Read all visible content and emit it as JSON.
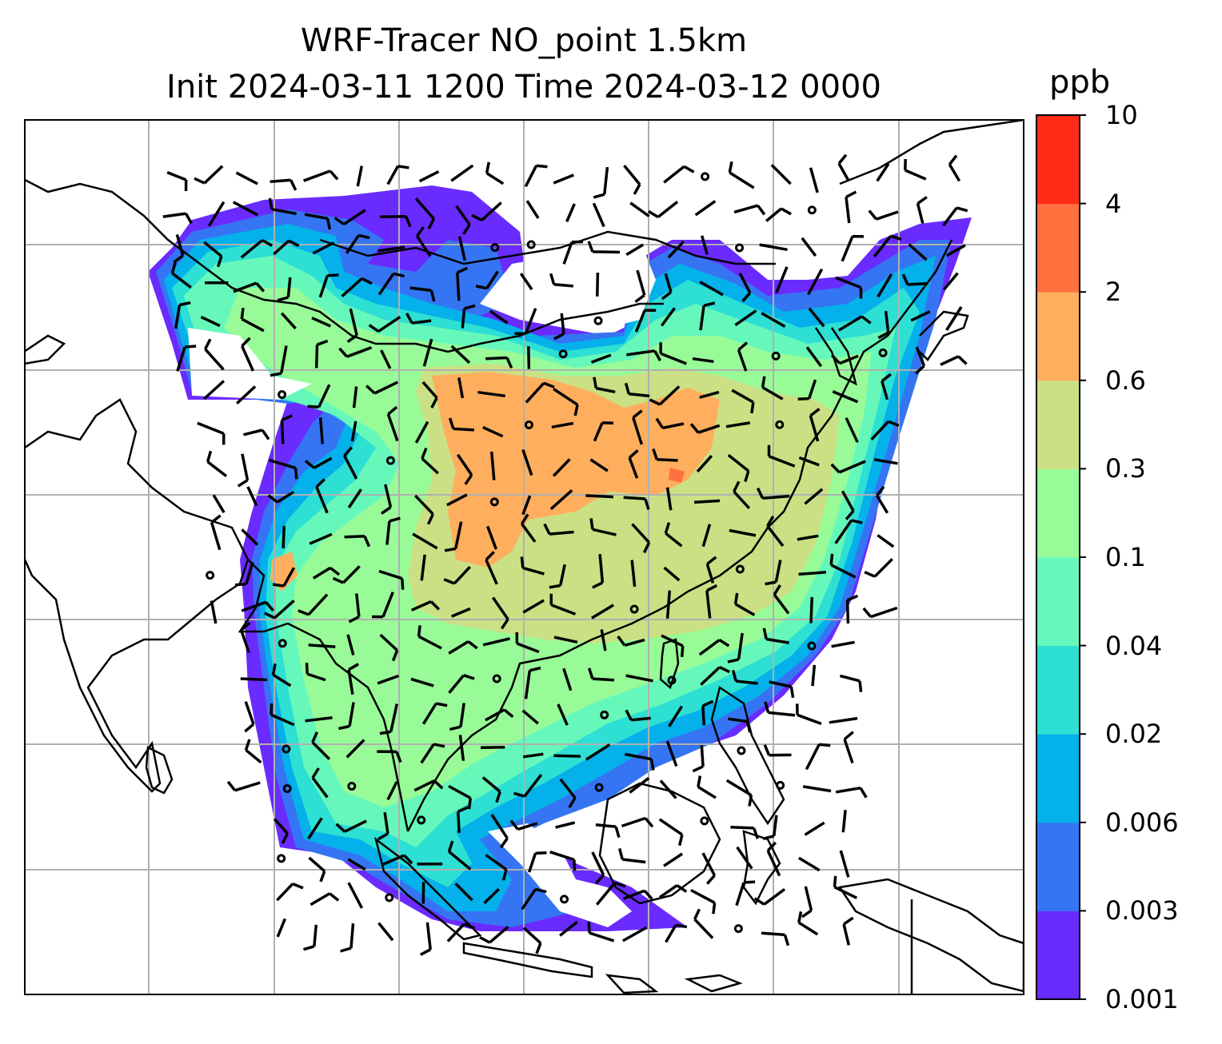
{
  "title": {
    "line1": "WRF-Tracer NO_point 1.5km",
    "line2": "Init 2024-03-11 1200 Time 2024-03-12 0000"
  },
  "colorbar": {
    "unit": "ppb",
    "levels": [
      "0.001",
      "0.003",
      "0.006",
      "0.02",
      "0.04",
      "0.1",
      "0.3",
      "0.6",
      "2",
      "4",
      "10"
    ],
    "colors": [
      "#6a2bff",
      "#3575f3",
      "#04b1ea",
      "#2ee0d3",
      "#66f8bb",
      "#98fb98",
      "#cbe084",
      "#ffae5e",
      "#ff713e",
      "#ff2d18"
    ]
  },
  "map": {
    "background": "#ffffff",
    "gridline_color": "#b0b0b0",
    "coastline_color": "#000000",
    "vector_color": "#000000"
  }
}
